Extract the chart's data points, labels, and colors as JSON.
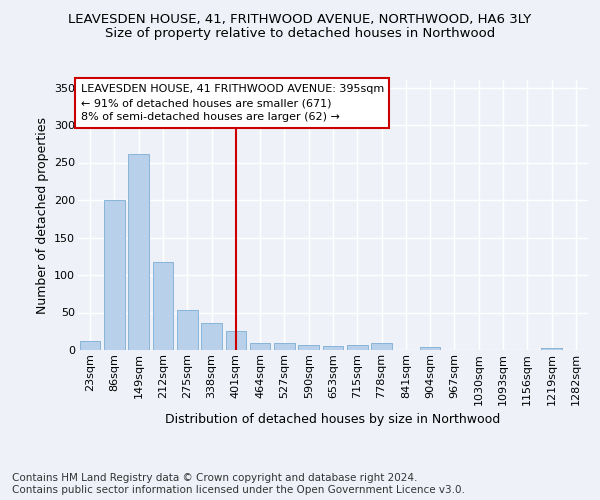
{
  "title_line1": "LEAVESDEN HOUSE, 41, FRITHWOOD AVENUE, NORTHWOOD, HA6 3LY",
  "title_line2": "Size of property relative to detached houses in Northwood",
  "xlabel": "Distribution of detached houses by size in Northwood",
  "ylabel": "Number of detached properties",
  "bar_labels": [
    "23sqm",
    "86sqm",
    "149sqm",
    "212sqm",
    "275sqm",
    "338sqm",
    "401sqm",
    "464sqm",
    "527sqm",
    "590sqm",
    "653sqm",
    "715sqm",
    "778sqm",
    "841sqm",
    "904sqm",
    "967sqm",
    "1030sqm",
    "1093sqm",
    "1156sqm",
    "1219sqm",
    "1282sqm"
  ],
  "bar_values": [
    12,
    200,
    262,
    117,
    54,
    36,
    25,
    10,
    10,
    7,
    5,
    7,
    9,
    0,
    4,
    0,
    0,
    0,
    0,
    3,
    0
  ],
  "bar_color": "#b8d0ea",
  "bar_edge_color": "#7aadd4",
  "vline_x_index": 6,
  "vline_color": "#cc0000",
  "annotation_text": "LEAVESDEN HOUSE, 41 FRITHWOOD AVENUE: 395sqm\n← 91% of detached houses are smaller (671)\n8% of semi-detached houses are larger (62) →",
  "annotation_box_color": "#cc0000",
  "ylim": [
    0,
    360
  ],
  "yticks": [
    0,
    50,
    100,
    150,
    200,
    250,
    300,
    350
  ],
  "footnote": "Contains HM Land Registry data © Crown copyright and database right 2024.\nContains public sector information licensed under the Open Government Licence v3.0.",
  "background_color": "#eef2f8",
  "plot_background": "#eef2f8",
  "grid_color": "#ffffff",
  "title_fontsize": 9.5,
  "subtitle_fontsize": 9.5,
  "axis_label_fontsize": 9,
  "tick_fontsize": 8,
  "annotation_fontsize": 8,
  "footnote_fontsize": 7.5
}
